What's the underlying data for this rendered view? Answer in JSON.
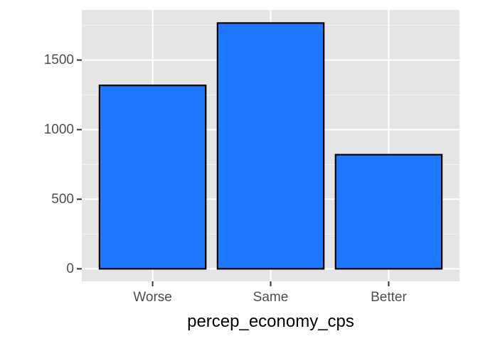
{
  "chart_data": {
    "type": "bar",
    "categories": [
      "Worse",
      "Same",
      "Better"
    ],
    "values": [
      1318,
      1766,
      820
    ],
    "title": "",
    "xlabel": "percep_economy_cps",
    "ylabel": "",
    "ylim": [
      -90,
      1860
    ],
    "yticks": [
      0,
      500,
      1000,
      1500
    ],
    "grid": true,
    "legend": "none",
    "colors": {
      "bar_fill": "#1E78FF",
      "bar_stroke": "#000000",
      "panel_background": "#E5E5E5",
      "grid_major": "#FFFFFF",
      "grid_minor": "#F2F2F2"
    }
  }
}
